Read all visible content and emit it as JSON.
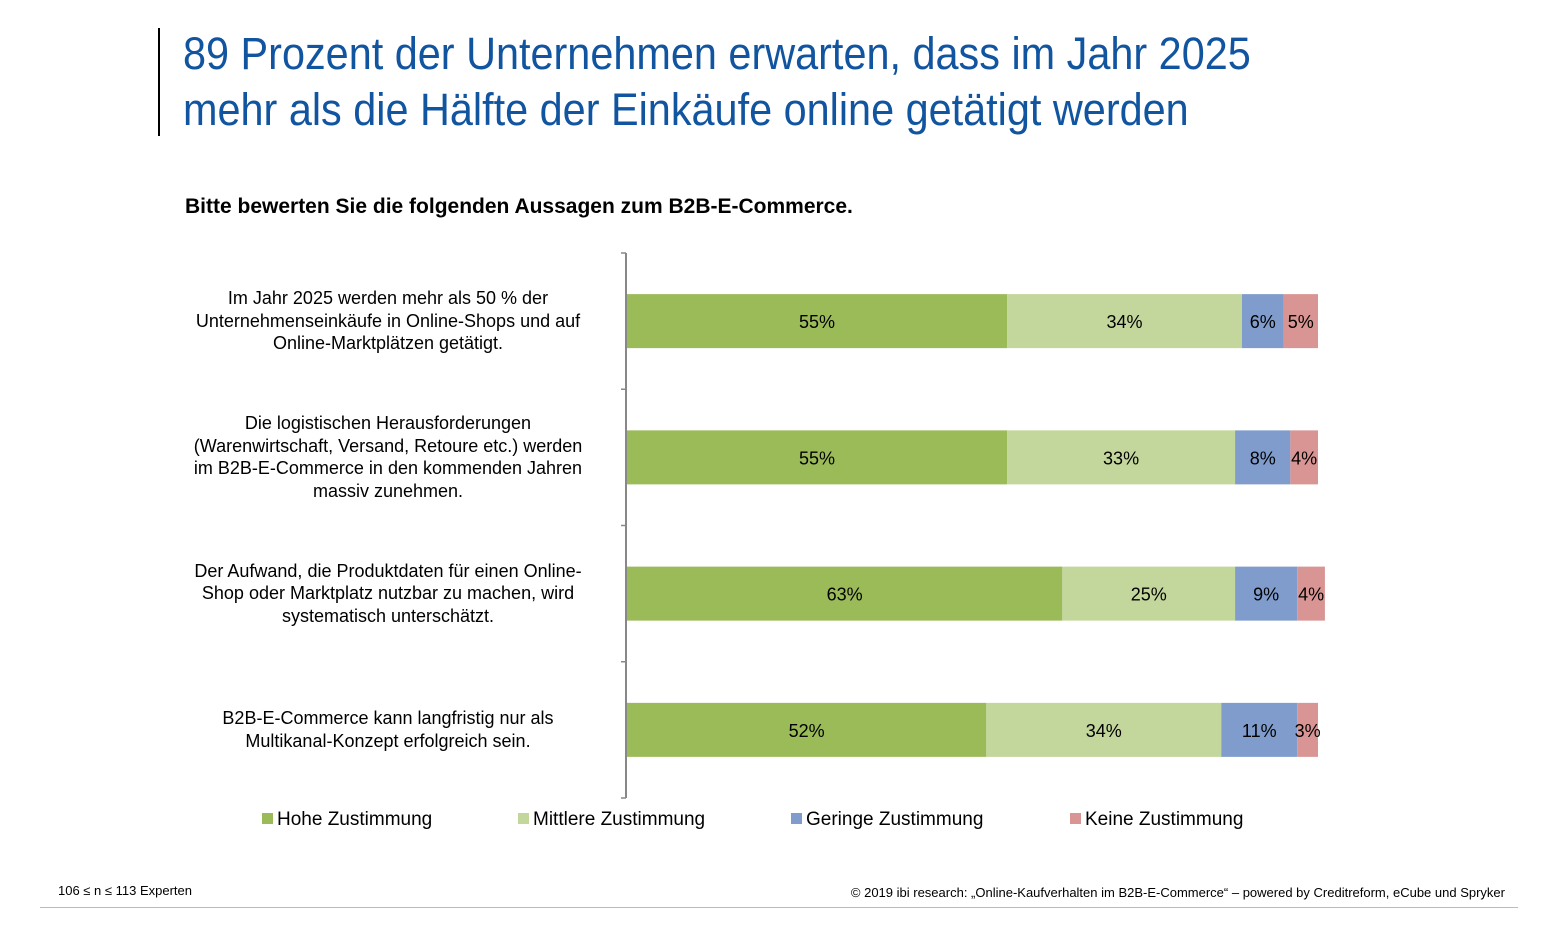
{
  "slide": {
    "title_lines": [
      "89 Prozent der Unternehmen erwarten, dass im Jahr 2025",
      "mehr als die Hälfte der Einkäufe online getätigt werden"
    ],
    "question": "Bitte bewerten Sie die folgenden Aussagen zum B2B-E-Commerce.",
    "footnote_sample": "106 ≤ n ≤ 113 Experten",
    "footnote_source": "© 2019 ibi research: „Online-Kaufverhalten im B2B-E-Commerce“ – powered by Creditreform, eCube und Spryker"
  },
  "chart_data": {
    "type": "bar",
    "orientation": "horizontal",
    "stacked": true,
    "title": "Bitte bewerten Sie die folgenden Aussagen zum B2B-E-Commerce.",
    "xlim": [
      0,
      100
    ],
    "legend_position": "bottom",
    "categories": [
      [
        "Im Jahr 2025 werden mehr als 50 % der",
        "Unternehmenseinkäufe in Online-Shops und auf",
        "Online-Marktplätzen getätigt."
      ],
      [
        "Die logistischen Herausforderungen",
        "(Warenwirtschaft, Versand, Retoure etc.) werden",
        "im B2B-E-Commerce in den kommenden Jahren",
        "massiv zunehmen."
      ],
      [
        "Der Aufwand, die Produktdaten für einen Online-",
        "Shop oder Marktplatz nutzbar zu machen, wird",
        "systematisch unterschätzt."
      ],
      [
        "B2B-E-Commerce kann langfristig nur als",
        "Multikanal-Konzept erfolgreich sein."
      ]
    ],
    "series": [
      {
        "name": "Hohe  Zustimmung",
        "color": "#9bbb59",
        "values": [
          55,
          55,
          63,
          52
        ]
      },
      {
        "name": "Mittlere  Zustimmung",
        "color": "#c3d69b",
        "values": [
          34,
          33,
          25,
          34
        ]
      },
      {
        "name": "Geringe  Zustimmung",
        "color": "#7f9ccc",
        "values": [
          6,
          8,
          9,
          11
        ]
      },
      {
        "name": "Keine  Zustimmung",
        "color": "#d99594",
        "values": [
          5,
          4,
          4,
          3
        ]
      }
    ],
    "value_labels": [
      [
        "55%",
        "34%",
        "6%",
        "5%"
      ],
      [
        "55%",
        "33%",
        "8%",
        "4%"
      ],
      [
        "63%",
        "25%",
        "9%",
        "4%"
      ],
      [
        "52%",
        "34%",
        "11%",
        "3%"
      ]
    ]
  }
}
